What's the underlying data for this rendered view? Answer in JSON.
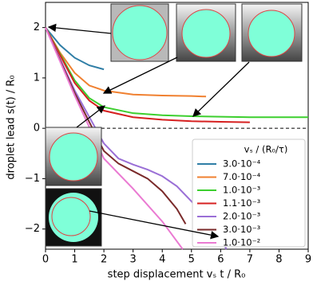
{
  "chart_data": {
    "type": "line",
    "xlabel": "step displacement vₛ t / R₀",
    "ylabel": "droplet lead s(t) / R₀",
    "legend_title": "vₛ / (R₀/τ)",
    "legend": "lower right",
    "hline": 0,
    "xlim": [
      0,
      9
    ],
    "ylim": [
      -2.4,
      2.5
    ],
    "xticks": [
      0,
      1,
      2,
      3,
      4,
      5,
      6,
      7,
      8,
      9
    ],
    "yticks": [
      {
        "value": -2,
        "label": "−2"
      },
      {
        "value": -1,
        "label": "−1"
      },
      0,
      1,
      2
    ],
    "series": [
      {
        "name": "3.0·10⁻⁴",
        "color": "#2f7ea6",
        "x": [
          0,
          0.5,
          1,
          1.5,
          2
        ],
        "values": [
          2,
          1.65,
          1.4,
          1.25,
          1.17
        ]
      },
      {
        "name": "7.0·10⁻⁴",
        "color": "#f08030",
        "x": [
          0,
          0.5,
          1,
          1.5,
          2,
          3,
          4,
          5,
          5.5
        ],
        "values": [
          2,
          1.5,
          1.1,
          0.85,
          0.75,
          0.67,
          0.65,
          0.64,
          0.63
        ]
      },
      {
        "name": "1.0·10⁻³",
        "color": "#3ccf2e",
        "x": [
          0,
          1,
          1.5,
          2,
          3,
          4,
          5,
          6,
          7,
          8,
          9
        ],
        "values": [
          2,
          0.95,
          0.6,
          0.42,
          0.3,
          0.26,
          0.24,
          0.23,
          0.22,
          0.22,
          0.22
        ]
      },
      {
        "name": "1.1·10⁻³",
        "color": "#d62020",
        "x": [
          0,
          1,
          1.5,
          2,
          3,
          4,
          5,
          6,
          7
        ],
        "values": [
          2,
          0.9,
          0.55,
          0.35,
          0.22,
          0.17,
          0.14,
          0.13,
          0.12
        ]
      },
      {
        "name": "2.0·10⁻³",
        "color": "#9a6fd6",
        "x": [
          0,
          1,
          2,
          2.5,
          3,
          3.5,
          4,
          4.5,
          5,
          5.5,
          6,
          6.2
        ],
        "values": [
          2,
          0.75,
          -0.3,
          -0.6,
          -0.72,
          -0.82,
          -0.95,
          -1.15,
          -1.45,
          -1.8,
          -2.2,
          -2.4
        ]
      },
      {
        "name": "3.0·10⁻³",
        "color": "#7a2a2a",
        "x": [
          0,
          1,
          2,
          2.5,
          3,
          3.5,
          4,
          4.5,
          4.8
        ],
        "values": [
          2,
          0.7,
          -0.45,
          -0.7,
          -0.85,
          -1.0,
          -1.25,
          -1.6,
          -1.9
        ]
      },
      {
        "name": "1.0·10⁻²",
        "color": "#ea7ad2",
        "x": [
          0,
          1,
          2,
          3,
          4,
          4.7
        ],
        "values": [
          2,
          0.65,
          -0.6,
          -1.2,
          -1.85,
          -2.4
        ]
      }
    ]
  }
}
